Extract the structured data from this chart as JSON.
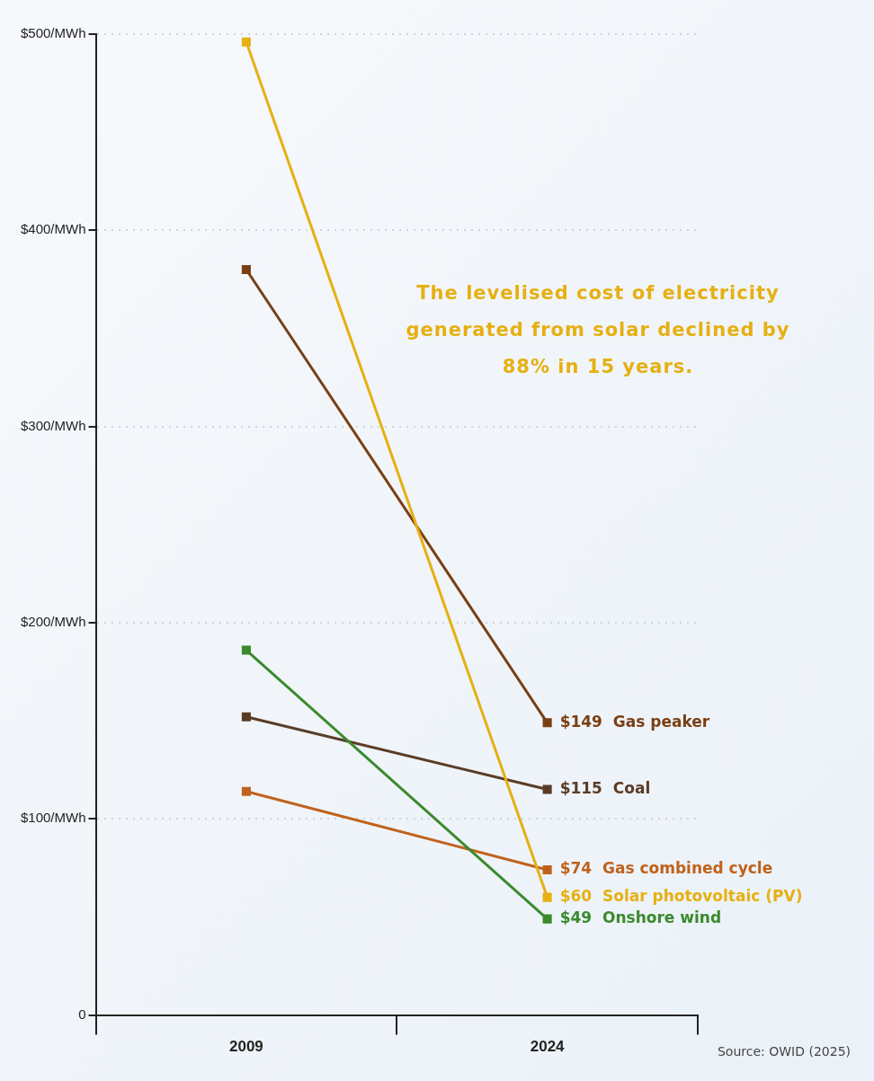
{
  "chart_data": {
    "type": "line",
    "categories": [
      "2009",
      "2024"
    ],
    "series": [
      {
        "name": "Solar photovoltaic (PV)",
        "color": "#e6b012",
        "values": [
          496,
          60
        ],
        "value_labels": [
          null,
          "$60"
        ]
      },
      {
        "name": "Gas peaker",
        "color": "#7a3f14",
        "values": [
          380,
          149
        ],
        "value_labels": [
          null,
          "$149"
        ]
      },
      {
        "name": "Onshore wind",
        "color": "#3b8a2c",
        "values": [
          186,
          49
        ],
        "value_labels": [
          null,
          "$49"
        ]
      },
      {
        "name": "Coal",
        "color": "#5a3c26",
        "values": [
          152,
          115
        ],
        "value_labels": [
          null,
          "$115"
        ]
      },
      {
        "name": "Gas combined cycle",
        "color": "#c0621c",
        "values": [
          114,
          74
        ],
        "value_labels": [
          null,
          "$74"
        ]
      }
    ],
    "ylim": [
      0,
      500
    ],
    "yticks": [
      0,
      {
        "value": 100,
        "label": "$100/MWh"
      },
      {
        "value": 200,
        "label": "$200/MWh"
      },
      {
        "value": 300,
        "label": "$300/MWh"
      },
      {
        "value": 400,
        "label": "$400/MWh"
      },
      {
        "value": 500,
        "label": "$500/MWh"
      }
    ],
    "grid": "y",
    "legend": false,
    "marker": "square",
    "line_style": "solid",
    "annotations": [
      "The levelised cost of electricity generated from solar declined by 88% in 15 years.",
      "Source: OWID (2025)"
    ]
  }
}
